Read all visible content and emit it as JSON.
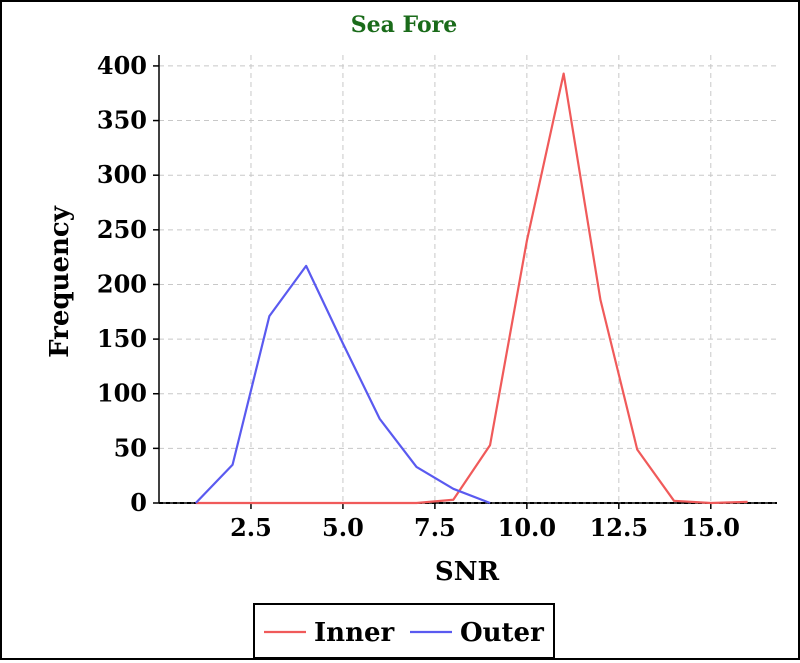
{
  "chart_data": {
    "type": "line",
    "title": "Sea Fore",
    "title_color": "#1a6b1a",
    "xlabel": "SNR",
    "ylabel": "Frequency",
    "xlim": [
      0.0,
      16.8
    ],
    "ylim": [
      0,
      410
    ],
    "x_ticks": [
      2.5,
      5.0,
      7.5,
      10.0,
      12.5,
      15.0
    ],
    "x_tick_labels": [
      "2.5",
      "5.0",
      "7.5",
      "10.0",
      "12.5",
      "15.0"
    ],
    "y_ticks": [
      0,
      50,
      100,
      150,
      200,
      250,
      300,
      350,
      400
    ],
    "y_tick_labels": [
      "0",
      "50",
      "100",
      "150",
      "200",
      "250",
      "300",
      "350",
      "400"
    ],
    "grid": true,
    "legend_position": "bottom-center",
    "series": [
      {
        "name": "Inner",
        "color": "#f05a5a",
        "x": [
          1,
          2,
          3,
          4,
          5,
          6,
          7,
          8,
          9,
          10,
          11,
          12,
          13,
          14,
          15,
          16
        ],
        "y": [
          0,
          0,
          0,
          0,
          0,
          0,
          0,
          3,
          53,
          240,
          393,
          186,
          49,
          2,
          0,
          1
        ]
      },
      {
        "name": "Outer",
        "color": "#5a5af0",
        "x": [
          1,
          2,
          3,
          4,
          5,
          6,
          7,
          8,
          9
        ],
        "y": [
          0,
          35,
          171,
          217,
          146,
          77,
          33,
          13,
          0
        ]
      }
    ]
  }
}
